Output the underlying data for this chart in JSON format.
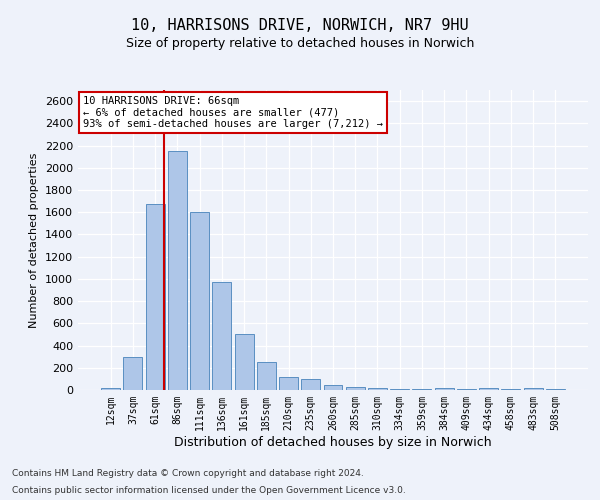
{
  "title_line1": "10, HARRISONS DRIVE, NORWICH, NR7 9HU",
  "title_line2": "Size of property relative to detached houses in Norwich",
  "xlabel": "Distribution of detached houses by size in Norwich",
  "ylabel": "Number of detached properties",
  "categories": [
    "12sqm",
    "37sqm",
    "61sqm",
    "86sqm",
    "111sqm",
    "136sqm",
    "161sqm",
    "185sqm",
    "210sqm",
    "235sqm",
    "260sqm",
    "285sqm",
    "310sqm",
    "334sqm",
    "359sqm",
    "384sqm",
    "409sqm",
    "434sqm",
    "458sqm",
    "483sqm",
    "508sqm"
  ],
  "values": [
    20,
    300,
    1670,
    2150,
    1600,
    970,
    500,
    248,
    120,
    100,
    48,
    30,
    15,
    10,
    8,
    20,
    8,
    20,
    5,
    20,
    5
  ],
  "bar_color": "#aec6e8",
  "bar_edge_color": "#5a8fc2",
  "vline_pos": 2.4,
  "vline_color": "#cc0000",
  "annotation_text": "10 HARRISONS DRIVE: 66sqm\n← 6% of detached houses are smaller (477)\n93% of semi-detached houses are larger (7,212) →",
  "annotation_box_facecolor": "#ffffff",
  "annotation_box_edgecolor": "#cc0000",
  "ylim": [
    0,
    2700
  ],
  "yticks": [
    0,
    200,
    400,
    600,
    800,
    1000,
    1200,
    1400,
    1600,
    1800,
    2000,
    2200,
    2400,
    2600
  ],
  "background_color": "#eef2fa",
  "grid_color": "#ffffff",
  "title_fontsize": 11,
  "subtitle_fontsize": 9,
  "xlabel_fontsize": 9,
  "ylabel_fontsize": 8,
  "tick_fontsize": 7,
  "footer_line1": "Contains HM Land Registry data © Crown copyright and database right 2024.",
  "footer_line2": "Contains public sector information licensed under the Open Government Licence v3.0.",
  "footer_fontsize": 6.5
}
